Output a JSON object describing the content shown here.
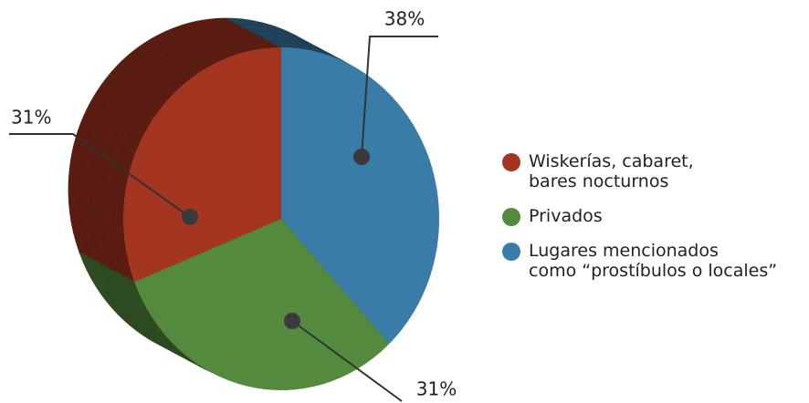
{
  "chart_data": {
    "type": "pie",
    "series": [
      {
        "name": "Wiskerías, cabaret,\nbares nocturnos",
        "color": "#a33521",
        "values": [
          31
        ],
        "value_labels": [
          "31%"
        ]
      },
      {
        "name": "Privados",
        "color": "#548a3e",
        "values": [
          31
        ],
        "value_labels": [
          "31%"
        ]
      },
      {
        "name": "Lugares mencionados\ncomo “prostíbulos o locales”",
        "color": "#3a7ca8",
        "values": [
          38
        ],
        "value_labels": [
          "38%"
        ]
      }
    ],
    "legend": "right"
  }
}
